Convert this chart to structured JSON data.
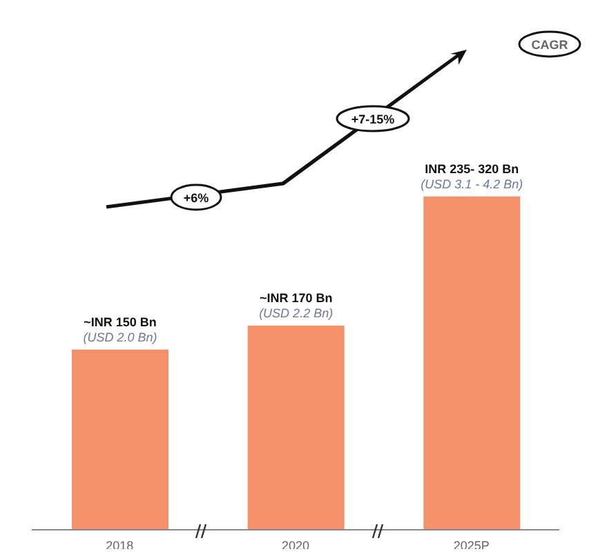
{
  "chart_data": {
    "type": "bar",
    "categories": [
      "2018",
      "2020",
      "2025P"
    ],
    "values": [
      150,
      170,
      277.5
    ],
    "color": "#f4916b",
    "ylim": [
      0,
      278
    ],
    "tick_labels": "x",
    "value_labels": [
      "~INR 150 Bn\n(USD 2.0 Bn)",
      "~INR 170 Bn\n(USD 2.2 Bn)",
      "INR 235- 320 Bn\n(USD 3.1 - 4.2 Bn)"
    ],
    "annotations": [
      "+6%",
      "+7-15%",
      "CAGR"
    ]
  }
}
